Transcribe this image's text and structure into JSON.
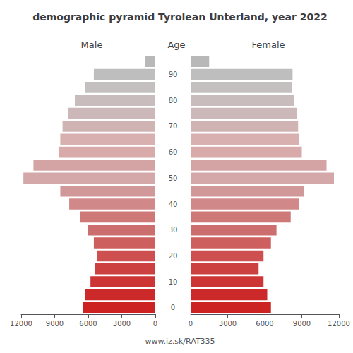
{
  "chart_data": {
    "type": "bar",
    "orientation": "horizontal",
    "title": "demographic pyramid Tyrolean Unterland, year 2022",
    "categories": [
      "0",
      null,
      "10",
      null,
      "20",
      null,
      "30",
      null,
      "40",
      null,
      "50",
      null,
      "60",
      null,
      "70",
      null,
      "80",
      null,
      "90",
      null
    ],
    "series": [
      {
        "name": "Male",
        "values": [
          6500,
          6300,
          5800,
          5400,
          5200,
          5500,
          6000,
          6700,
          7700,
          8500,
          11800,
          10900,
          8600,
          8500,
          8300,
          7800,
          7200,
          6300,
          5500,
          900
        ]
      },
      {
        "name": "Female",
        "values": [
          6500,
          6200,
          5900,
          5500,
          5900,
          6500,
          6950,
          8100,
          8800,
          9200,
          11600,
          11000,
          9000,
          8800,
          8700,
          8600,
          8400,
          8200,
          8250,
          1500
        ]
      }
    ],
    "colors": [
      "#cc2222",
      "#cc2a2a",
      "#cd3535",
      "#cd4040",
      "#cd4f4f",
      "#cd5f5f",
      "#cd6e6e",
      "#cf7878",
      "#d08888",
      "#d09898",
      "#d4a8a8",
      "#d4a4a4",
      "#d8aaaa",
      "#d8b0b0",
      "#d0b4b4",
      "#ccb8b8",
      "#c8bcbc",
      "#c4c0c0",
      "#bebebe",
      "#b8b8b8"
    ],
    "ylabel": "Age",
    "xlim": [
      0,
      12000
    ],
    "xticks": [
      0,
      3000,
      6000,
      9000,
      12000
    ],
    "annotations": [
      "www.iz.sk/RAT335"
    ],
    "grid": false
  }
}
